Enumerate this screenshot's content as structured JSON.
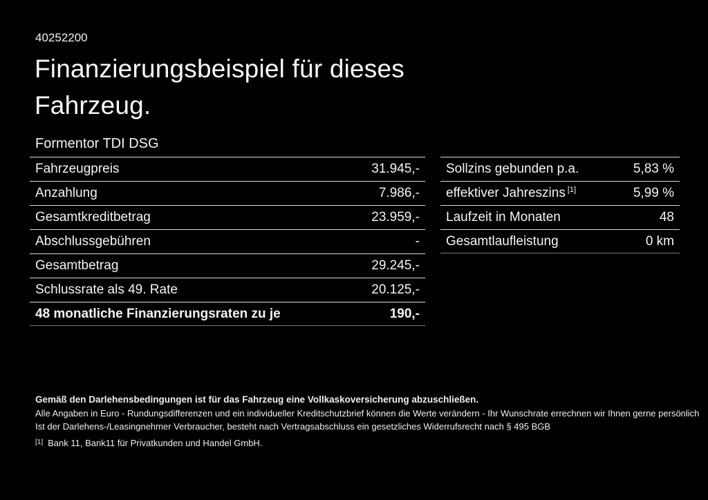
{
  "page": {
    "background_color": "#000000",
    "text_color": "#ffffff",
    "doc_number": "40252200",
    "title_line1": "Finanzierungsbeispiel für dieses",
    "title_line2": "Fahrzeug.",
    "model_name": "Formentor TDI DSG"
  },
  "finance_table": {
    "rows": [
      {
        "label": "Fahrzeugpreis",
        "value": "31.945,-"
      },
      {
        "label": "Anzahlung",
        "value": "7.986,-"
      },
      {
        "label": "Gesamtkreditbetrag",
        "value": "23.959,-"
      },
      {
        "label": "Abschlussgebühren",
        "value": "-"
      },
      {
        "label": "Gesamtbetrag",
        "value": "29.245,-"
      },
      {
        "label": "Schlussrate als 49. Rate",
        "value": "20.125,-"
      },
      {
        "label": "48 monatliche Finanzierungsraten zu je",
        "value": "190,-",
        "bold": true
      }
    ]
  },
  "conditions_table": {
    "rows": [
      {
        "label": "Sollzins gebunden p.a.",
        "value": "5,83 %"
      },
      {
        "label": "effektiver Jahreszins",
        "sup": "[1]",
        "value": "5,99 %"
      },
      {
        "label": "Laufzeit in Monaten",
        "value": "48"
      },
      {
        "label": "Gesamtlaufleistung",
        "value": "0 km"
      }
    ]
  },
  "footer": {
    "insurance_note": "Gemäß den Darlehensbedingungen ist für das Fahrzeug eine Vollkaskoversicherung abzuschließen.",
    "disclaimer": "Alle Angaben in Euro - Rundungsdifferenzen und ein individueller Kreditschutzbrief können die Werte verändern - Ihr Wunschrate errechnen wir Ihnen gerne persönlich",
    "withdrawal_note": "Ist der Darlehens-/Leasingnehmer Verbraucher, besteht nach Vertragsabschluss ein gesetzliches Widerrufsrecht nach § 495 BGB",
    "footnote_marker": "[1]",
    "footnote_text": "Bank 11, Bank11 für Privatkunden und Handel GmbH."
  },
  "colors": {
    "row_separator": "#dcdcdc",
    "table_bottom_border": "#787878"
  }
}
